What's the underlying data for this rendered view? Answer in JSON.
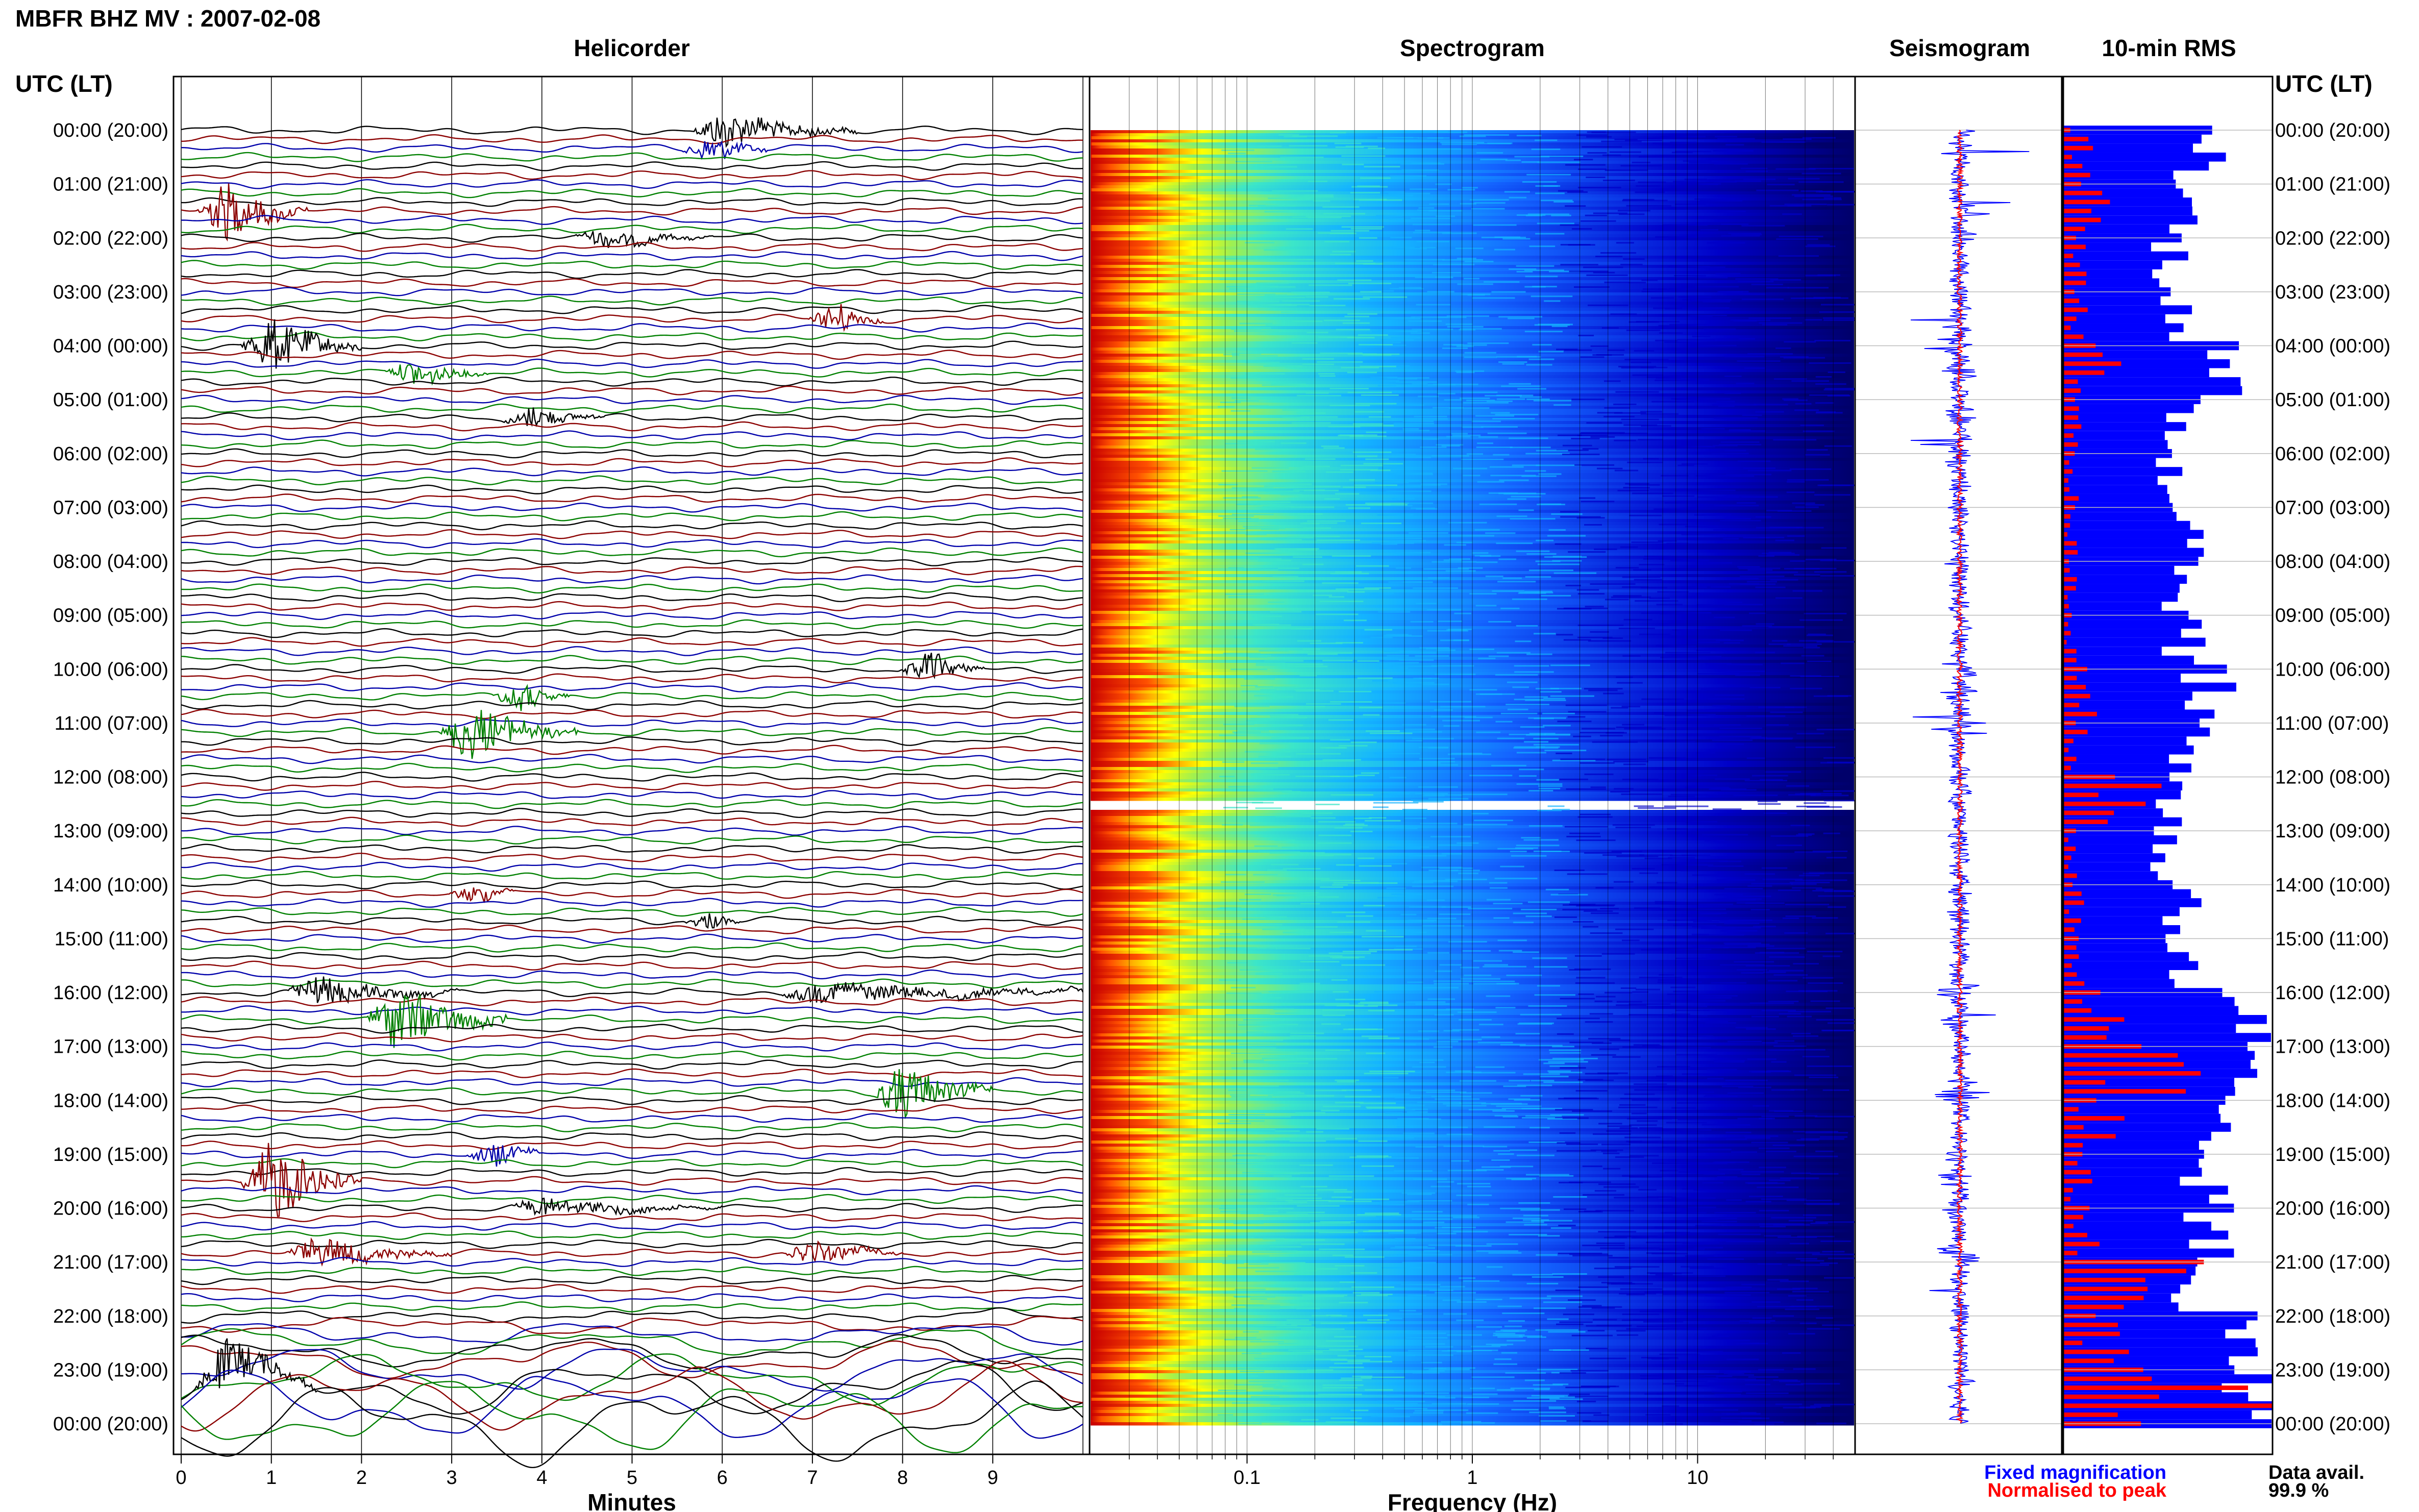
{
  "header": {
    "title": "MBFR BHZ MV : 2007-02-08"
  },
  "panels": {
    "helicorder": {
      "title": "Helicorder",
      "xlabel": "Minutes"
    },
    "spectrogram": {
      "title": "Spectrogram",
      "xlabel": "Frequency (Hz)"
    },
    "seismogram": {
      "title": "Seismogram"
    },
    "rms": {
      "title": "10-min RMS"
    }
  },
  "yaxis": {
    "label_left": "UTC (LT)",
    "label_right": "UTC (LT)",
    "hour_labels": [
      "00:00 (20:00)",
      "01:00 (21:00)",
      "02:00 (22:00)",
      "03:00 (23:00)",
      "04:00 (00:00)",
      "05:00 (01:00)",
      "06:00 (02:00)",
      "07:00 (03:00)",
      "08:00 (04:00)",
      "09:00 (05:00)",
      "10:00 (06:00)",
      "11:00 (07:00)",
      "12:00 (08:00)",
      "13:00 (09:00)",
      "14:00 (10:00)",
      "15:00 (11:00)",
      "16:00 (12:00)",
      "17:00 (13:00)",
      "18:00 (14:00)",
      "19:00 (15:00)",
      "20:00 (16:00)",
      "21:00 (17:00)",
      "22:00 (18:00)",
      "23:00 (19:00)",
      "00:00 (20:00)"
    ]
  },
  "legend": {
    "fixed": "Fixed magnification",
    "normalised": "Normalised to peak",
    "fixed_color": "#0000ff",
    "normalised_color": "#ff0000"
  },
  "availability": {
    "label": "Data avail.",
    "value": "99.9 %"
  },
  "chart_data": [
    {
      "type": "line",
      "title": "Helicorder",
      "xlabel": "Minutes",
      "x_ticks": [
        "0",
        "1",
        "2",
        "3",
        "4",
        "5",
        "6",
        "7",
        "8",
        "9"
      ],
      "xlim": [
        0,
        10
      ],
      "trace_colors": [
        "#000000",
        "#8b0000",
        "#0000aa",
        "#008000"
      ],
      "events": [
        {
          "hour": 0.0,
          "minute": 6.0,
          "amp": 1.0,
          "dur": 1.5
        },
        {
          "hour": 0.33,
          "minute": 5.9,
          "amp": 0.8,
          "dur": 0.6
        },
        {
          "hour": 1.45,
          "minute": 0.5,
          "amp": 1.6,
          "dur": 0.9
        },
        {
          "hour": 2.0,
          "minute": 4.7,
          "amp": 0.5,
          "dur": 1.2
        },
        {
          "hour": 3.55,
          "minute": 7.3,
          "amp": 0.9,
          "dur": 0.5
        },
        {
          "hour": 4.0,
          "minute": 1.0,
          "amp": 1.5,
          "dur": 1.0
        },
        {
          "hour": 4.5,
          "minute": 2.6,
          "amp": 0.7,
          "dur": 0.8
        },
        {
          "hour": 5.3,
          "minute": 3.9,
          "amp": 0.6,
          "dur": 0.8
        },
        {
          "hour": 10.0,
          "minute": 8.3,
          "amp": 0.9,
          "dur": 0.6
        },
        {
          "hour": 10.45,
          "minute": 3.8,
          "amp": 0.8,
          "dur": 0.5
        },
        {
          "hour": 11.1,
          "minute": 3.2,
          "amp": 1.5,
          "dur": 1.2
        },
        {
          "hour": 14.1,
          "minute": 3.3,
          "amp": 0.6,
          "dur": 0.4
        },
        {
          "hour": 14.6,
          "minute": 5.9,
          "amp": 0.5,
          "dur": 0.3
        },
        {
          "hour": 15.95,
          "minute": 1.5,
          "amp": 0.8,
          "dur": 1.6
        },
        {
          "hour": 16.0,
          "minute": 7.0,
          "amp": 0.5,
          "dur": 4.5
        },
        {
          "hour": 16.5,
          "minute": 2.4,
          "amp": 1.8,
          "dur": 1.2
        },
        {
          "hour": 17.9,
          "minute": 8.0,
          "amp": 1.5,
          "dur": 1.0
        },
        {
          "hour": 19.0,
          "minute": 3.5,
          "amp": 0.7,
          "dur": 0.5
        },
        {
          "hour": 19.5,
          "minute": 1.0,
          "amp": 2.4,
          "dur": 1.0
        },
        {
          "hour": 20.0,
          "minute": 4.0,
          "amp": 0.5,
          "dur": 2.0
        },
        {
          "hour": 20.9,
          "minute": 1.5,
          "amp": 0.8,
          "dur": 1.5
        },
        {
          "hour": 20.8,
          "minute": 7.0,
          "amp": 0.6,
          "dur": 1.0
        },
        {
          "hour": 23.3,
          "minute": 0.5,
          "amp": 1.4,
          "dur": 1.0
        }
      ]
    },
    {
      "type": "heatmap",
      "title": "Spectrogram",
      "xlabel": "Frequency (Hz)",
      "x_ticks": [
        "0.1",
        "1",
        "10"
      ],
      "xscale": "log",
      "xlim": [
        0.02,
        50
      ],
      "colormap": [
        "#00006a",
        "#0000c8",
        "#1464ff",
        "#14b4ff",
        "#3ce6c8",
        "#a0f050",
        "#ffff00",
        "#ffb400",
        "#ff5000",
        "#c80000"
      ],
      "gap_hour": 12.5
    },
    {
      "type": "line",
      "title": "Seismogram",
      "series": [
        {
          "name": "Fixed magnification",
          "color": "#0000ff"
        },
        {
          "name": "Normalised to peak",
          "color": "#ff0000"
        }
      ]
    },
    {
      "type": "bar",
      "title": "10-min RMS",
      "interval_minutes": 10,
      "fixed_hourly": [
        0.7,
        0.6,
        0.55,
        0.6,
        0.75,
        0.6,
        0.55,
        0.68,
        0.62,
        0.62,
        0.72,
        0.65,
        0.55,
        0.5,
        0.62,
        0.58,
        0.9,
        0.85,
        0.7,
        0.7,
        0.72,
        0.6,
        1.0,
        1.0,
        1.0
      ],
      "normalised_hourly": [
        0.1,
        0.15,
        0.12,
        0.1,
        0.2,
        0.1,
        0.05,
        0.05,
        0.05,
        0.05,
        0.12,
        0.08,
        0.35,
        0.05,
        0.08,
        0.1,
        0.2,
        0.55,
        0.2,
        0.1,
        0.12,
        0.5,
        0.25,
        0.7,
        0.45
      ],
      "series": [
        {
          "name": "Fixed magnification",
          "color": "#0000ff"
        },
        {
          "name": "Normalised to peak",
          "color": "#ff0000"
        }
      ]
    }
  ]
}
